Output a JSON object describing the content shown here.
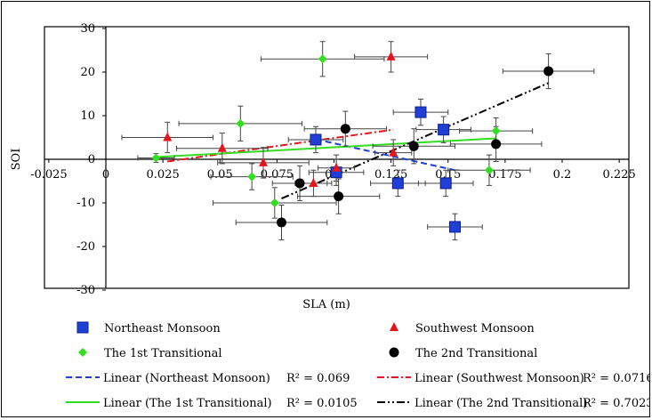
{
  "chart_data": {
    "type": "scatter",
    "xlabel": "SLA (m)",
    "ylabel": "SOI",
    "xlim": [
      -0.025,
      0.225
    ],
    "ylim": [
      -30,
      30
    ],
    "xticks": [
      -0.025,
      0,
      0.025,
      0.05,
      0.075,
      0.1,
      0.125,
      0.15,
      0.175,
      0.2,
      0.225
    ],
    "xtick_labels": [
      "-0.025",
      "0",
      "0.025",
      "0.05",
      "0.075",
      "0.1",
      "0.125",
      "0.15",
      "0.175",
      "0.2",
      "0.225"
    ],
    "yticks": [
      -30,
      -20,
      -10,
      0,
      10,
      20,
      30
    ],
    "ytick_labels": [
      "-30",
      "-20",
      "-10",
      "0",
      "10",
      "20",
      "30"
    ],
    "grid": false,
    "legend_position": "bottom",
    "series": [
      {
        "name": "Northeast Monsoon",
        "marker": "square",
        "color": "#1f3fd6",
        "points": [
          {
            "x": 0.092,
            "y": 4.5,
            "xerr": 0.012,
            "yerr": 3
          },
          {
            "x": 0.101,
            "y": -3.0,
            "xerr": 0.012,
            "yerr": 3
          },
          {
            "x": 0.138,
            "y": 10.8,
            "xerr": 0.012,
            "yerr": 3
          },
          {
            "x": 0.148,
            "y": 6.8,
            "xerr": 0.012,
            "yerr": 3
          },
          {
            "x": 0.128,
            "y": -5.5,
            "xerr": 0.012,
            "yerr": 3
          },
          {
            "x": 0.149,
            "y": -5.5,
            "xerr": 0.012,
            "yerr": 3
          },
          {
            "x": 0.153,
            "y": -15.5,
            "xerr": 0.012,
            "yerr": 3
          }
        ]
      },
      {
        "name": "Southwest Monsoon",
        "marker": "triangle",
        "color": "#e8141b",
        "points": [
          {
            "x": 0.027,
            "y": 5.0,
            "xerr": 0.02,
            "yerr": 3.5
          },
          {
            "x": 0.051,
            "y": 2.5,
            "xerr": 0.02,
            "yerr": 3.5
          },
          {
            "x": 0.069,
            "y": -0.8,
            "xerr": 0.02,
            "yerr": 3.5
          },
          {
            "x": 0.091,
            "y": -5.5,
            "xerr": 0.008,
            "yerr": 3
          },
          {
            "x": 0.101,
            "y": -2.0,
            "xerr": 0.008,
            "yerr": 3
          },
          {
            "x": 0.126,
            "y": 1.5,
            "xerr": 0.008,
            "yerr": 3
          },
          {
            "x": 0.125,
            "y": 23.5,
            "xerr": 0.016,
            "yerr": 3.5
          }
        ]
      },
      {
        "name": "The 1st Transitional",
        "marker": "diamond",
        "color": "#33dd22",
        "points": [
          {
            "x": 0.022,
            "y": 0.3,
            "xerr": 0.008,
            "yerr": 1
          },
          {
            "x": 0.059,
            "y": 8.2,
            "xerr": 0.027,
            "yerr": 4
          },
          {
            "x": 0.064,
            "y": -4.0,
            "xerr": 0.018,
            "yerr": 3
          },
          {
            "x": 0.074,
            "y": -10.0,
            "xerr": 0.027,
            "yerr": 3.5
          },
          {
            "x": 0.095,
            "y": 23.0,
            "xerr": 0.027,
            "yerr": 4
          },
          {
            "x": 0.168,
            "y": -2.5,
            "xerr": 0.018,
            "yerr": 3.5
          },
          {
            "x": 0.171,
            "y": 6.5,
            "xerr": 0.016,
            "yerr": 3
          }
        ]
      },
      {
        "name": "The 2nd Transitional",
        "marker": "circle",
        "color": "#000000",
        "points": [
          {
            "x": 0.085,
            "y": -5.5,
            "xerr": 0.012,
            "yerr": 4
          },
          {
            "x": 0.077,
            "y": -14.5,
            "xerr": 0.02,
            "yerr": 4
          },
          {
            "x": 0.102,
            "y": -8.5,
            "xerr": 0.018,
            "yerr": 4
          },
          {
            "x": 0.105,
            "y": 7.0,
            "xerr": 0.018,
            "yerr": 4
          },
          {
            "x": 0.135,
            "y": 3.0,
            "xerr": 0.018,
            "yerr": 4
          },
          {
            "x": 0.171,
            "y": 3.5,
            "xerr": 0.02,
            "yerr": 4
          },
          {
            "x": 0.194,
            "y": 20.2,
            "xerr": 0.02,
            "yerr": 4
          }
        ]
      }
    ],
    "trendlines": [
      {
        "name": "Linear (Northeast Monsoon)",
        "color": "#1f3fd6",
        "dash": "dashed",
        "x": [
          0.092,
          0.153
        ],
        "y": [
          4.6,
          -2.5
        ],
        "r2": "R² = 0.069"
      },
      {
        "name": "Linear (Southwest Monsoon)",
        "color": "#e8141b",
        "dash": "dashdot",
        "x": [
          0.027,
          0.126
        ],
        "y": [
          -0.5,
          6.8
        ],
        "r2": "R² = 0.0716"
      },
      {
        "name": "Linear (The 1st Transitional)",
        "color": "#33dd22",
        "dash": "solid",
        "x": [
          0.022,
          0.171
        ],
        "y": [
          0.5,
          4.8
        ],
        "r2": "R² = 0.0105"
      },
      {
        "name": "Linear (The 2nd Transitional)",
        "color": "#000000",
        "dash": "dashdotdot",
        "x": [
          0.077,
          0.194
        ],
        "y": [
          -9.0,
          17.5
        ],
        "r2": "R² = 0.7023"
      }
    ]
  }
}
